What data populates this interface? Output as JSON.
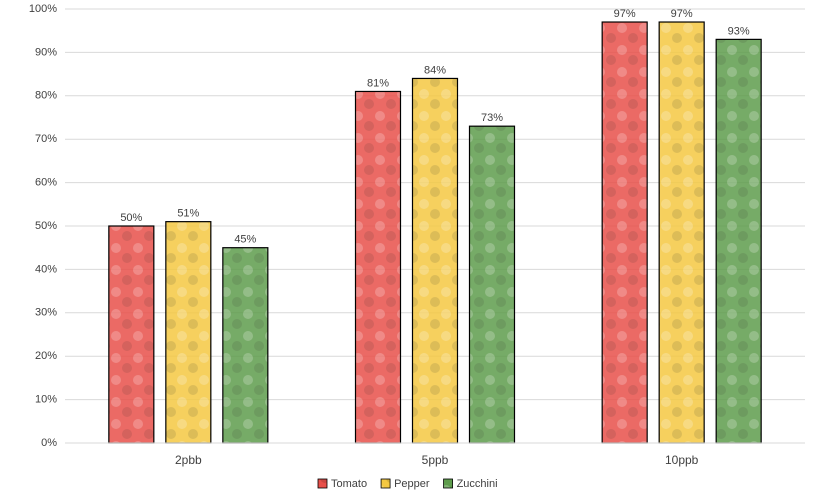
{
  "chart_data": {
    "type": "bar",
    "categories": [
      "2pbb",
      "5ppb",
      "10ppb"
    ],
    "series": [
      {
        "name": "Tomato",
        "color": "#e8504a",
        "values": [
          50,
          81,
          97
        ],
        "value_labels": [
          "50%",
          "81%",
          "97%"
        ]
      },
      {
        "name": "Pepper",
        "color": "#f4c842",
        "values": [
          51,
          84,
          97
        ],
        "value_labels": [
          "51%",
          "84%",
          "97%"
        ]
      },
      {
        "name": "Zucchini",
        "color": "#5e9c4c",
        "values": [
          45,
          73,
          93
        ],
        "value_labels": [
          "45%",
          "73%",
          "93%"
        ]
      }
    ],
    "ylim": [
      0,
      100
    ],
    "yticks": [
      {
        "value": 0,
        "label": "0%"
      },
      {
        "value": 10,
        "label": "10%"
      },
      {
        "value": 20,
        "label": "20%"
      },
      {
        "value": 30,
        "label": "30%"
      },
      {
        "value": 40,
        "label": "40%"
      },
      {
        "value": 50,
        "label": "50%"
      },
      {
        "value": 60,
        "label": "60%"
      },
      {
        "value": 70,
        "label": "70%"
      },
      {
        "value": 80,
        "label": "80%"
      },
      {
        "value": 90,
        "label": "90%"
      },
      {
        "value": 100,
        "label": "100%"
      }
    ],
    "grid": true,
    "legend": "bottom"
  }
}
